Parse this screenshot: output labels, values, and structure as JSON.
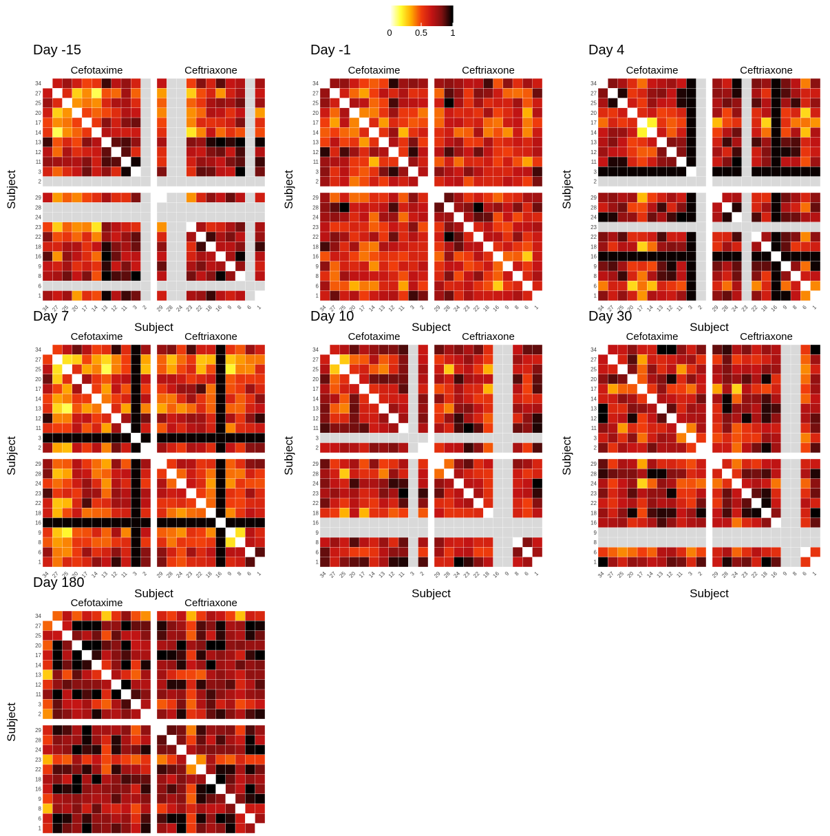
{
  "chart_data": {
    "type": "heatmap",
    "colorbar": {
      "ticks": [
        {
          "value": 0,
          "label": "0"
        },
        {
          "value": 0.5,
          "label": "0.5"
        },
        {
          "value": 1,
          "label": "1"
        }
      ],
      "range": [
        0,
        1
      ],
      "colors": [
        "#ffffff",
        "#ffff33",
        "#ffae00",
        "#f03c0c",
        "#c41414",
        "#801010",
        "#000000"
      ]
    },
    "groups": [
      {
        "name": "Cefotaxime",
        "subjects": [
          "34",
          "27",
          "25",
          "20",
          "17",
          "14",
          "13",
          "12",
          "11",
          "3",
          "2"
        ]
      },
      {
        "name": "Ceftriaxone",
        "subjects": [
          "29",
          "28",
          "24",
          "23",
          "22",
          "18",
          "16",
          "9",
          "8",
          "6",
          "1"
        ]
      }
    ],
    "xlabel": "Subject",
    "ylabel": "Subject",
    "missing_color": "#d9d9d9",
    "panels": [
      {
        "title": "Day -15",
        "missing": [
          "2",
          "24",
          "28",
          "6"
        ],
        "dark": []
      },
      {
        "title": "Day -1",
        "missing": [],
        "dark": []
      },
      {
        "title": "Day 4",
        "missing": [
          "2",
          "23"
        ],
        "dark": [
          "3",
          "16"
        ]
      },
      {
        "title": "Day 7",
        "missing": [],
        "dark": [
          "3",
          "16"
        ]
      },
      {
        "title": "Day 10",
        "missing": [
          "3",
          "16",
          "9"
        ],
        "dark": []
      },
      {
        "title": "Day 30",
        "missing": [
          "9",
          "8"
        ],
        "dark": []
      },
      {
        "title": "Day 180",
        "missing": [],
        "dark": []
      }
    ]
  }
}
